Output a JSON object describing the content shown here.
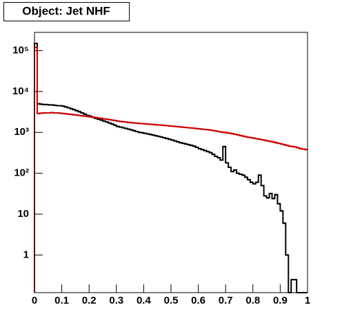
{
  "chart_data": {
    "type": "histogram",
    "title": "Object: Jet NHF",
    "log_y": true,
    "xlim": [
      0,
      1
    ],
    "ylim": [
      0.12,
      280000
    ],
    "xticks": [
      0,
      0.1,
      0.2,
      0.3,
      0.4,
      0.5,
      0.6,
      0.7,
      0.8,
      0.9,
      1
    ],
    "yticks": [
      1,
      10,
      {
        "value": 100,
        "label": "10²"
      },
      {
        "value": 1000,
        "label": "10³"
      },
      {
        "value": 10000,
        "label": "10⁴"
      },
      {
        "value": 100000,
        "label": "10⁵"
      }
    ],
    "bins": [
      0,
      0.01,
      0.02,
      0.03,
      0.04,
      0.05,
      0.06,
      0.07,
      0.08,
      0.09,
      0.1,
      0.11,
      0.12,
      0.13,
      0.14,
      0.15,
      0.16,
      0.17,
      0.18,
      0.19,
      0.2,
      0.21,
      0.22,
      0.23,
      0.24,
      0.25,
      0.26,
      0.27,
      0.28,
      0.29,
      0.3,
      0.31,
      0.32,
      0.33,
      0.34,
      0.35,
      0.36,
      0.37,
      0.38,
      0.39,
      0.4,
      0.41,
      0.42,
      0.43,
      0.44,
      0.45,
      0.46,
      0.47,
      0.48,
      0.49,
      0.5,
      0.51,
      0.52,
      0.53,
      0.54,
      0.55,
      0.56,
      0.57,
      0.58,
      0.59,
      0.6,
      0.61,
      0.62,
      0.63,
      0.64,
      0.65,
      0.66,
      0.67,
      0.68,
      0.69,
      0.7,
      0.71,
      0.72,
      0.73,
      0.74,
      0.75,
      0.76,
      0.77,
      0.78,
      0.79,
      0.8,
      0.81,
      0.82,
      0.83,
      0.84,
      0.85,
      0.86,
      0.87,
      0.88,
      0.89,
      0.9,
      0.91,
      0.92,
      0.93,
      0.94,
      0.95,
      0.96,
      0.97,
      0.98,
      0.99,
      1
    ],
    "series": [
      {
        "color": "#000000",
        "values": [
          150000,
          5000,
          4900,
          4800,
          4800,
          4700,
          4700,
          4600,
          4500,
          4500,
          4400,
          4200,
          4000,
          3800,
          3600,
          3400,
          3200,
          3000,
          2800,
          2600,
          2500,
          2350,
          2200,
          2100,
          2000,
          1900,
          1800,
          1700,
          1600,
          1500,
          1400,
          1350,
          1300,
          1250,
          1200,
          1150,
          1100,
          1050,
          1000,
          980,
          950,
          920,
          890,
          860,
          830,
          800,
          770,
          740,
          710,
          680,
          650,
          620,
          590,
          560,
          540,
          520,
          500,
          480,
          460,
          430,
          400,
          380,
          360,
          340,
          320,
          290,
          260,
          240,
          210,
          450,
          180,
          140,
          110,
          120,
          100,
          95,
          90,
          80,
          70,
          60,
          55,
          60,
          90,
          50,
          28,
          25,
          32,
          24,
          30,
          18,
          12,
          6,
          1,
          0,
          0.25,
          0.25,
          0,
          0,
          0,
          0
        ]
      },
      {
        "color": "#cc0000",
        "values": [
          120000,
          2900,
          2950,
          3000,
          3000,
          3000,
          3050,
          3000,
          3000,
          2950,
          2900,
          2850,
          2800,
          2750,
          2700,
          2650,
          2600,
          2550,
          2500,
          2450,
          2400,
          2350,
          2300,
          2250,
          2200,
          2150,
          2100,
          2050,
          2000,
          1950,
          1900,
          1850,
          1820,
          1790,
          1760,
          1730,
          1700,
          1680,
          1660,
          1640,
          1620,
          1600,
          1580,
          1560,
          1540,
          1520,
          1500,
          1480,
          1460,
          1440,
          1420,
          1400,
          1380,
          1360,
          1340,
          1320,
          1300,
          1280,
          1260,
          1240,
          1220,
          1200,
          1180,
          1160,
          1140,
          1110,
          1080,
          1050,
          1020,
          1000,
          980,
          960,
          930,
          900,
          870,
          840,
          810,
          780,
          760,
          740,
          720,
          700,
          680,
          660,
          640,
          620,
          600,
          580,
          560,
          540,
          520,
          500,
          480,
          460,
          450,
          440,
          420,
          400,
          390,
          380
        ]
      }
    ]
  }
}
